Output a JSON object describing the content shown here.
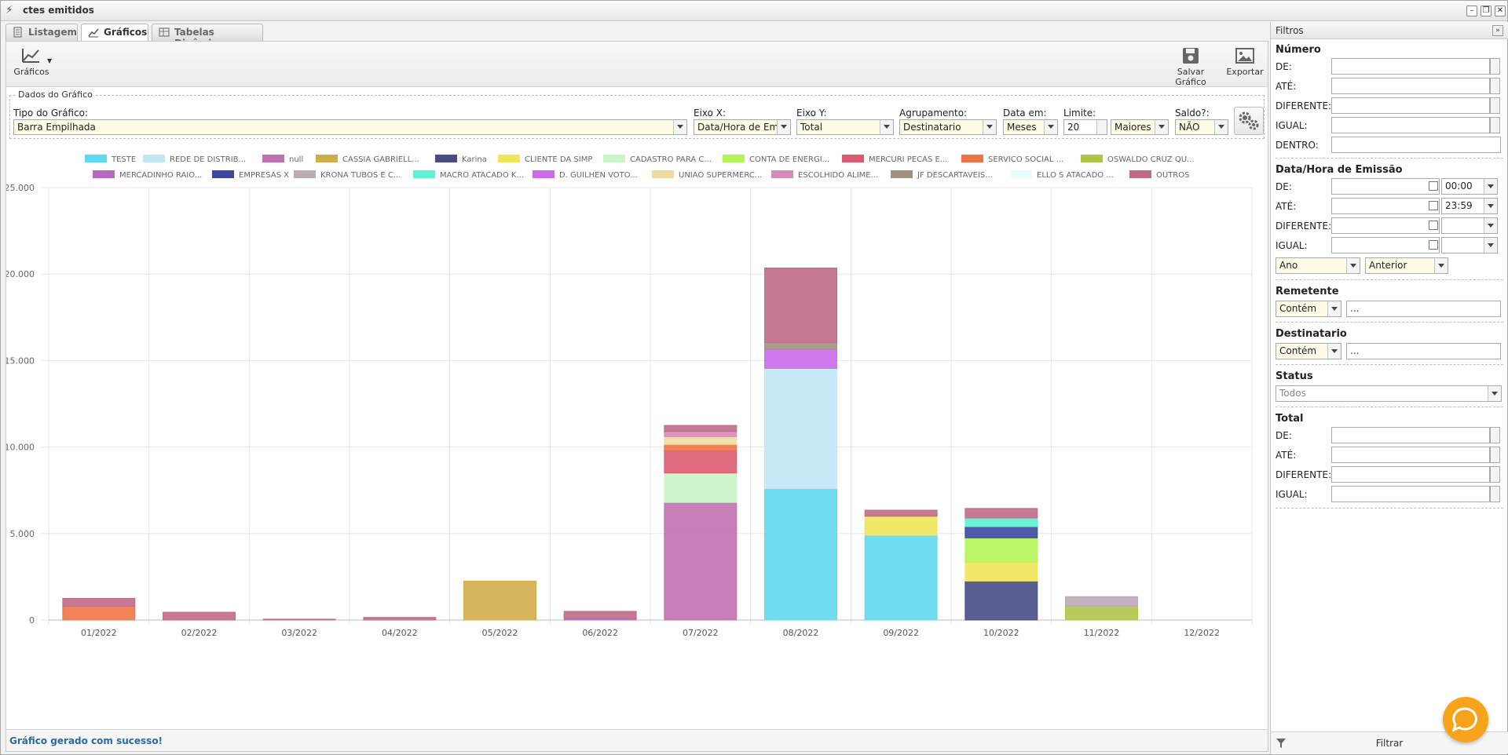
{
  "window": {
    "title": "ctes emitidos"
  },
  "tabs": [
    {
      "label": "Listagem"
    },
    {
      "label": "Gráficos"
    },
    {
      "label": "Tabelas Dinâmicas"
    }
  ],
  "toolbar": {
    "charts_label": "Gráficos",
    "save_label": "Salvar Gráfico",
    "export_label": "Exportar"
  },
  "dados": {
    "title": "Dados do Gráfico",
    "tipo_label": "Tipo do Gráfico:",
    "tipo_value": "Barra Empilhada",
    "eixo_x_label": "Eixo X:",
    "eixo_x_value": "Data/Hora de Emis",
    "eixo_y_label": "Eixo Y:",
    "eixo_y_value": "Total",
    "agrup_label": "Agrupamento:",
    "agrup_value": "Destinatario",
    "data_em_label": "Data em:",
    "data_em_value": "Meses",
    "limite_label": "Limite:",
    "limite_value": "20",
    "limite_order": "Maiores",
    "saldo_label": "Saldo?:",
    "saldo_value": "NÃO"
  },
  "status": {
    "message": "Gráfico gerado com sucesso!"
  },
  "chart_data": {
    "type": "bar",
    "stacked": true,
    "categories": [
      "01/2022",
      "02/2022",
      "03/2022",
      "04/2022",
      "05/2022",
      "06/2022",
      "07/2022",
      "08/2022",
      "09/2022",
      "10/2022",
      "11/2022",
      "12/2022"
    ],
    "ylim": [
      0,
      25000
    ],
    "yticks": [
      "0",
      "5.000",
      "10.000",
      "15.000",
      "20.000",
      "25.000"
    ],
    "ytick_values": [
      0,
      5000,
      10000,
      15000,
      20000,
      25000
    ],
    "legend_position": "top",
    "grid": true,
    "series": [
      {
        "name": "TESTE",
        "color": "#5fd9f0",
        "values": [
          0,
          0,
          0,
          0,
          0,
          0,
          0,
          7600,
          4900,
          0,
          0,
          0
        ]
      },
      {
        "name": "REDE DE DISTRIB...",
        "color": "#c2e8f7",
        "values": [
          0,
          0,
          0,
          0,
          0,
          0,
          0,
          6950,
          0,
          0,
          0,
          0
        ]
      },
      {
        "name": "null",
        "color": "#c270b0",
        "values": [
          0,
          0,
          0,
          0,
          0,
          0,
          6800,
          0,
          0,
          0,
          0,
          0
        ]
      },
      {
        "name": "CASSIA GABRIELL...",
        "color": "#d1ad4a",
        "values": [
          0,
          0,
          0,
          0,
          2250,
          0,
          0,
          0,
          0,
          0,
          0,
          0
        ]
      },
      {
        "name": "Karina",
        "color": "#474e86",
        "values": [
          0,
          0,
          0,
          0,
          0,
          0,
          0,
          0,
          0,
          2250,
          0,
          0
        ]
      },
      {
        "name": "CLIENTE DA SIMP",
        "color": "#f0e65a",
        "values": [
          0,
          0,
          0,
          0,
          0,
          0,
          0,
          0,
          1100,
          1100,
          0,
          0
        ]
      },
      {
        "name": "CADASTRO PARA C...",
        "color": "#c8f5c8",
        "values": [
          0,
          0,
          0,
          0,
          0,
          0,
          1700,
          0,
          0,
          0,
          0,
          0
        ]
      },
      {
        "name": "CONTA DE ENERGI...",
        "color": "#b4f55a",
        "values": [
          0,
          0,
          0,
          0,
          0,
          0,
          0,
          0,
          0,
          1400,
          0,
          0
        ]
      },
      {
        "name": "MERCURI PECAS E...",
        "color": "#dd5a70",
        "values": [
          0,
          0,
          0,
          0,
          0,
          0,
          1300,
          0,
          0,
          0,
          0,
          0
        ]
      },
      {
        "name": "SERVICO SOCIAL ...",
        "color": "#ee7545",
        "values": [
          800,
          0,
          0,
          0,
          0,
          0,
          350,
          0,
          0,
          0,
          0,
          0
        ]
      },
      {
        "name": "OSWALDO CRUZ QU...",
        "color": "#b0c448",
        "values": [
          0,
          0,
          0,
          0,
          0,
          0,
          0,
          0,
          0,
          0,
          800,
          0
        ]
      },
      {
        "name": "MERCADINHO RAIO...",
        "color": "#b868c0",
        "values": [
          0,
          0,
          0,
          0,
          0,
          100,
          0,
          0,
          0,
          0,
          0,
          0
        ]
      },
      {
        "name": "EMPRESAS X",
        "color": "#3d48a0",
        "values": [
          0,
          0,
          0,
          0,
          0,
          0,
          0,
          0,
          0,
          650,
          0,
          0
        ]
      },
      {
        "name": "KRONA TUBOS E C...",
        "color": "#bbaab8",
        "values": [
          0,
          0,
          0,
          0,
          0,
          0,
          0,
          0,
          0,
          0,
          550,
          0
        ]
      },
      {
        "name": "MACRO ATACADO K...",
        "color": "#5ff0d5",
        "values": [
          0,
          0,
          0,
          0,
          0,
          0,
          0,
          0,
          0,
          500,
          0,
          0
        ]
      },
      {
        "name": "D. GUILHEN VOTO...",
        "color": "#cb6aea",
        "values": [
          0,
          0,
          0,
          0,
          0,
          0,
          0,
          1100,
          0,
          0,
          0,
          0
        ]
      },
      {
        "name": "UNIAO SUPERMERC...",
        "color": "#f0dca0",
        "values": [
          0,
          0,
          0,
          0,
          0,
          0,
          450,
          0,
          0,
          0,
          0,
          0
        ]
      },
      {
        "name": "ESCOLHIDO ALIME...",
        "color": "#d88ab8",
        "values": [
          0,
          0,
          0,
          0,
          0,
          0,
          300,
          0,
          0,
          0,
          0,
          0
        ]
      },
      {
        "name": "JF DESCARTAVEIS...",
        "color": "#a09080",
        "values": [
          0,
          0,
          0,
          0,
          0,
          0,
          0,
          400,
          0,
          0,
          0,
          0
        ]
      },
      {
        "name": "ELLO S ATACADO ...",
        "color": "#e8fbfb",
        "values": [
          0,
          0,
          0,
          0,
          0,
          0,
          0,
          0,
          0,
          0,
          0,
          0
        ]
      },
      {
        "name": "OUTROS",
        "color": "#c06a88",
        "values": [
          450,
          450,
          50,
          150,
          0,
          400,
          350,
          4300,
          350,
          550,
          0,
          0
        ]
      }
    ]
  },
  "filters": {
    "title": "Filtros",
    "numero": {
      "title": "Número",
      "de": "DE:",
      "ate": "ATÉ:",
      "diferente": "DIFERENTE:",
      "igual": "IGUAL:",
      "dentro": "DENTRO:"
    },
    "data": {
      "title": "Data/Hora de Emissão",
      "de": "DE:",
      "ate": "ATÉ:",
      "diferente": "DIFERENTE:",
      "igual": "IGUAL:",
      "time_de": "00:00",
      "time_ate": "23:59",
      "periodo": "Ano",
      "relativo": "Anterior"
    },
    "remetente": {
      "title": "Remetente",
      "op": "Contém",
      "value": "..."
    },
    "destinatario": {
      "title": "Destinatario",
      "op": "Contém",
      "value": "..."
    },
    "status": {
      "title": "Status",
      "value": "Todos"
    },
    "total": {
      "title": "Total",
      "de": "DE:",
      "ate": "ATÉ:",
      "diferente": "DIFERENTE:",
      "igual": "IGUAL:"
    },
    "filter_button": "Filtrar"
  }
}
